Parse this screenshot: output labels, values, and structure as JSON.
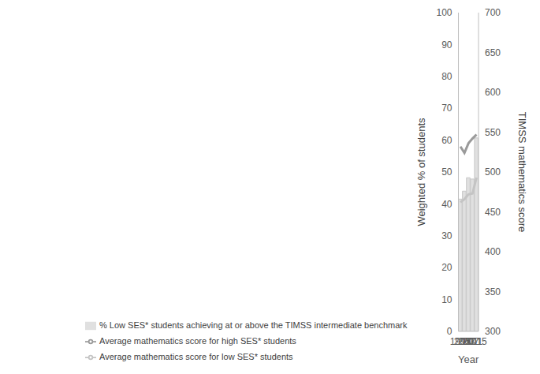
{
  "chart_data": {
    "type": "bar",
    "categories": [
      "1995",
      "2003",
      "2007",
      "2011",
      "2015"
    ],
    "x_label": "Year",
    "y_label": "Weighted % of students",
    "y2_label": "TIMSS mathematics score",
    "ylim": [
      0,
      100
    ],
    "yticks": [
      0,
      10,
      20,
      30,
      40,
      50,
      60,
      70,
      80,
      90,
      100
    ],
    "y2lim": [
      300,
      700
    ],
    "y2ticks": [
      300,
      350,
      400,
      450,
      500,
      550,
      600,
      650,
      700
    ],
    "grid": false,
    "legend": "bottom",
    "series": [
      {
        "name": "% Low SES* students achieving at or above the TIMSS intermediate benchmark",
        "type": "bar",
        "color": "#e0e0e0",
        "values": [
          41.5,
          44,
          48.2,
          47.8,
          60.7
        ]
      },
      {
        "name": "Average mathematics score for low SES* students",
        "type": "line",
        "axis": "y2",
        "color": "#c4c4c4",
        "values": [
          462,
          466,
          472,
          473,
          493
        ]
      },
      {
        "name": "Average mathematics score for high SES* students",
        "type": "line",
        "axis": "y2",
        "color": "#9a9a9a",
        "values": [
          532,
          524,
          536,
          542,
          547
        ]
      }
    ]
  }
}
